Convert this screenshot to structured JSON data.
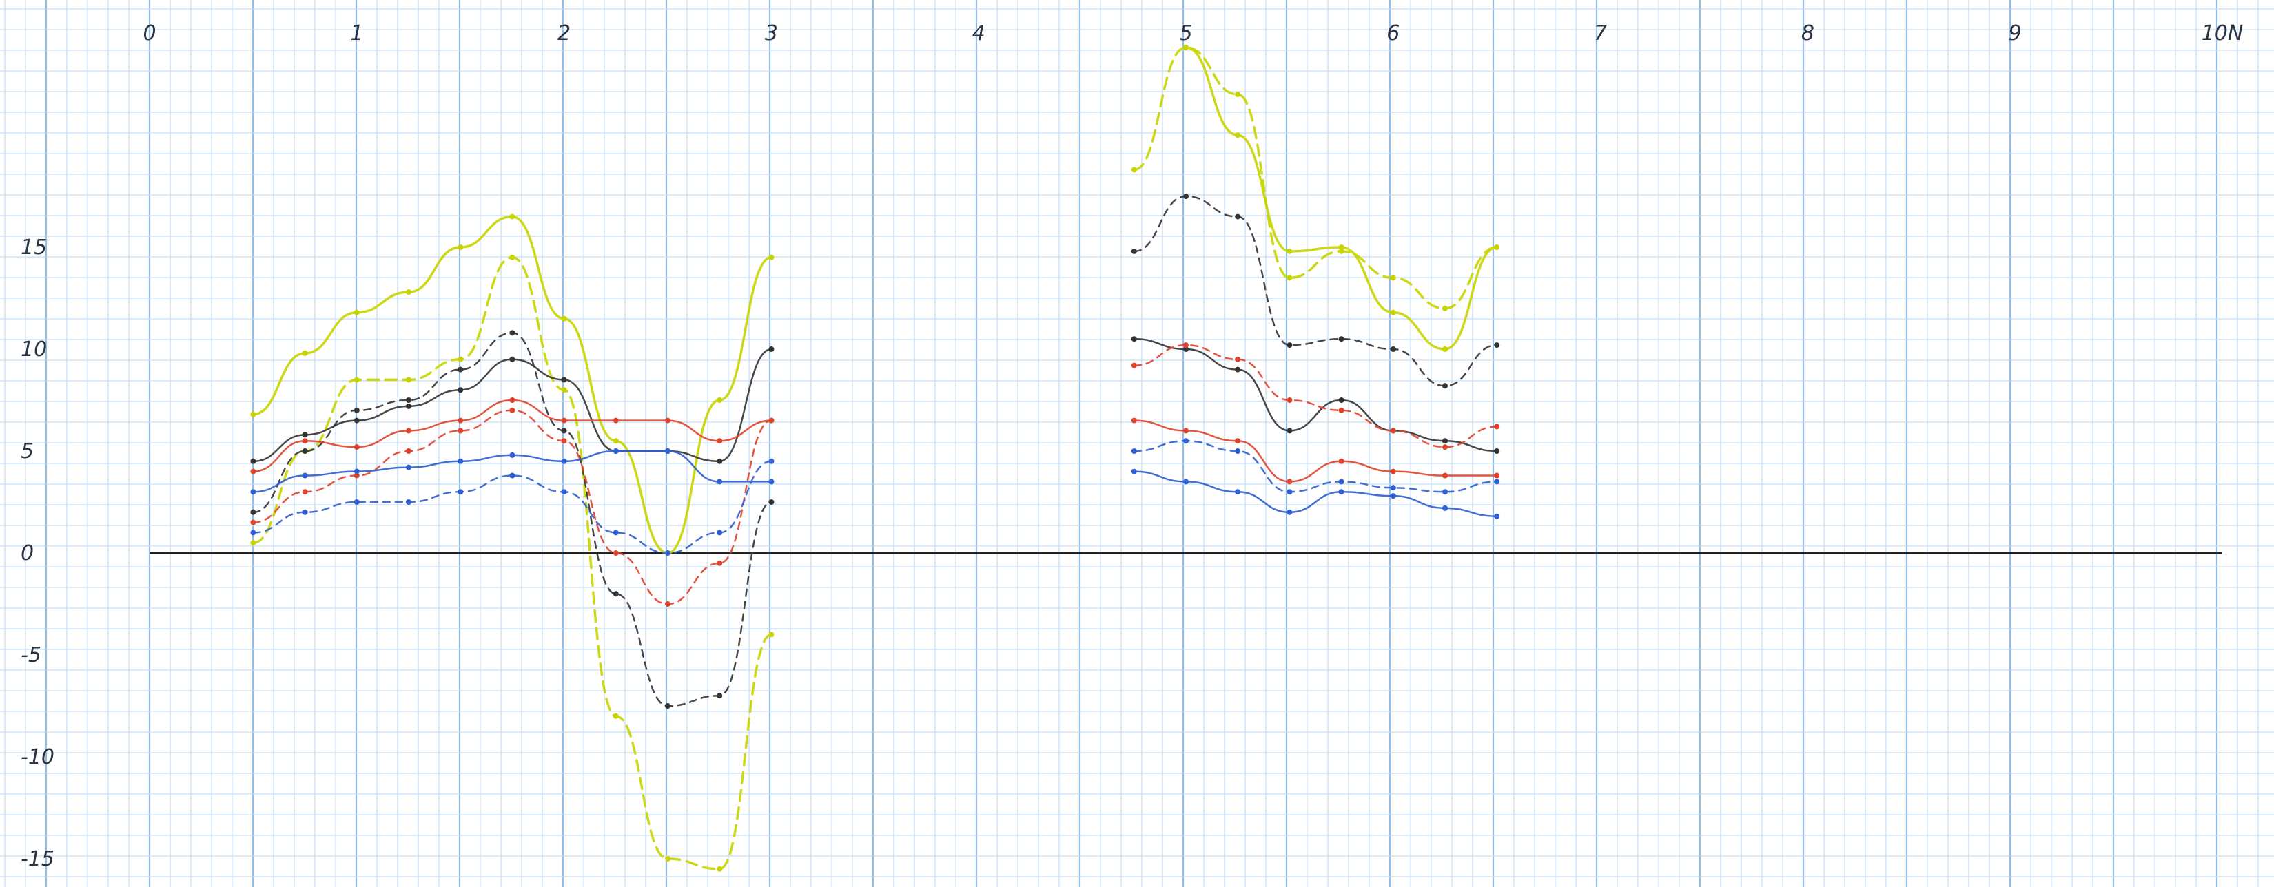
{
  "chart_data": {
    "type": "line",
    "title": "",
    "xlabel": "",
    "ylabel": "",
    "x_ticks": [
      "0",
      "1",
      "2",
      "3",
      "4",
      "5",
      "6",
      "7",
      "8",
      "9",
      "10N"
    ],
    "y_ticks": [
      "15",
      "10",
      "5",
      "0",
      "-5",
      "-10",
      "-15"
    ],
    "xlim": [
      0,
      10
    ],
    "ylim": [
      -15,
      25
    ],
    "grid": true,
    "background": "graph paper",
    "colors": {
      "paper": "#ffffff",
      "minor_grid": "#c4ddf3",
      "major_grid": "#8fbde8",
      "axis": "#222222",
      "yellow": "#c8d400",
      "black": "#333333",
      "red": "#e0432b",
      "blue": "#2f5fd0"
    },
    "series": [
      {
        "color": "yellow",
        "dash": "solid",
        "x": [
          0.5,
          0.75,
          1,
          1.25,
          1.5,
          1.75,
          2,
          2.25,
          2.5,
          2.75,
          3
        ],
        "y": [
          6.8,
          9.8,
          11.8,
          12.8,
          15,
          16.5,
          11.5,
          5.5,
          0,
          7.5,
          14.5
        ]
      },
      {
        "color": "yellow",
        "dash": "dashed",
        "x": [
          0.5,
          0.75,
          1,
          1.25,
          1.5,
          1.75,
          2,
          2.25,
          2.5,
          2.75,
          3
        ],
        "y": [
          0.5,
          5,
          8.5,
          8.5,
          9.5,
          14.5,
          8,
          -8,
          -15,
          -15.5,
          -4
        ]
      },
      {
        "color": "black",
        "dash": "solid",
        "x": [
          0.5,
          0.75,
          1,
          1.25,
          1.5,
          1.75,
          2,
          2.25,
          2.5,
          2.75,
          3
        ],
        "y": [
          4.5,
          5.8,
          6.5,
          7.2,
          8,
          9.5,
          8.5,
          5,
          5,
          4.5,
          10
        ]
      },
      {
        "color": "black",
        "dash": "dashed",
        "x": [
          0.5,
          0.75,
          1,
          1.25,
          1.5,
          1.75,
          2,
          2.25,
          2.5,
          2.75,
          3
        ],
        "y": [
          2,
          5,
          7,
          7.5,
          9,
          10.8,
          6,
          -2,
          -7.5,
          -7,
          2.5
        ]
      },
      {
        "color": "red",
        "dash": "solid",
        "x": [
          0.5,
          0.75,
          1,
          1.25,
          1.5,
          1.75,
          2,
          2.25,
          2.5,
          2.75,
          3
        ],
        "y": [
          4,
          5.5,
          5.2,
          6,
          6.5,
          7.5,
          6.5,
          6.5,
          6.5,
          5.5,
          6.5
        ]
      },
      {
        "color": "red",
        "dash": "dashed",
        "x": [
          0.5,
          0.75,
          1,
          1.25,
          1.5,
          1.75,
          2,
          2.25,
          2.5,
          2.75,
          3
        ],
        "y": [
          1.5,
          3,
          3.8,
          5,
          6,
          7,
          5.5,
          0,
          -2.5,
          -0.5,
          6.5
        ]
      },
      {
        "color": "blue",
        "dash": "solid",
        "x": [
          0.5,
          0.75,
          1,
          1.25,
          1.5,
          1.75,
          2,
          2.25,
          2.5,
          2.75,
          3
        ],
        "y": [
          3,
          3.8,
          4,
          4.2,
          4.5,
          4.8,
          4.5,
          5,
          5,
          3.5,
          3.5
        ]
      },
      {
        "color": "blue",
        "dash": "dashed",
        "x": [
          0.5,
          0.75,
          1,
          1.25,
          1.5,
          1.75,
          2,
          2.25,
          2.5,
          2.75,
          3
        ],
        "y": [
          1,
          2,
          2.5,
          2.5,
          3,
          3.8,
          3,
          1,
          0,
          1,
          4.5
        ]
      },
      {
        "color": "yellow",
        "dash": "solid",
        "x": [
          5,
          5.25,
          5.5,
          5.75,
          6,
          6.25,
          6.5
        ],
        "y": [
          24.8,
          20.5,
          14.8,
          15,
          11.8,
          10,
          15
        ]
      },
      {
        "color": "yellow",
        "dash": "dashed",
        "x": [
          4.75,
          5,
          5.25,
          5.5,
          5.75,
          6,
          6.25,
          6.5
        ],
        "y": [
          18.8,
          24.8,
          22.5,
          13.5,
          14.8,
          13.5,
          12,
          15
        ]
      },
      {
        "color": "black",
        "dash": "solid",
        "x": [
          4.75,
          5,
          5.25,
          5.5,
          5.75,
          6,
          6.25,
          6.5
        ],
        "y": [
          10.5,
          10,
          9,
          6,
          7.5,
          6,
          5.5,
          5
        ]
      },
      {
        "color": "black",
        "dash": "dashed",
        "x": [
          4.75,
          5,
          5.25,
          5.5,
          5.75,
          6,
          6.25,
          6.5
        ],
        "y": [
          14.8,
          17.5,
          16.5,
          10.2,
          10.5,
          10,
          8.2,
          10.2
        ]
      },
      {
        "color": "red",
        "dash": "solid",
        "x": [
          4.75,
          5,
          5.25,
          5.5,
          5.75,
          6,
          6.25,
          6.5
        ],
        "y": [
          6.5,
          6,
          5.5,
          3.5,
          4.5,
          4,
          3.8,
          3.8
        ]
      },
      {
        "color": "red",
        "dash": "dashed",
        "x": [
          4.75,
          5,
          5.25,
          5.5,
          5.75,
          6,
          6.25,
          6.5
        ],
        "y": [
          9.2,
          10.2,
          9.5,
          7.5,
          7,
          6,
          5.2,
          6.2
        ]
      },
      {
        "color": "blue",
        "dash": "solid",
        "x": [
          4.75,
          5,
          5.25,
          5.5,
          5.75,
          6,
          6.25,
          6.5
        ],
        "y": [
          4,
          3.5,
          3,
          2,
          3,
          2.8,
          2.2,
          1.8
        ]
      },
      {
        "color": "blue",
        "dash": "dashed",
        "x": [
          4.75,
          5,
          5.25,
          5.5,
          5.75,
          6,
          6.25,
          6.5
        ],
        "y": [
          5,
          5.5,
          5,
          3,
          3.5,
          3.2,
          3,
          3.5
        ]
      }
    ]
  }
}
